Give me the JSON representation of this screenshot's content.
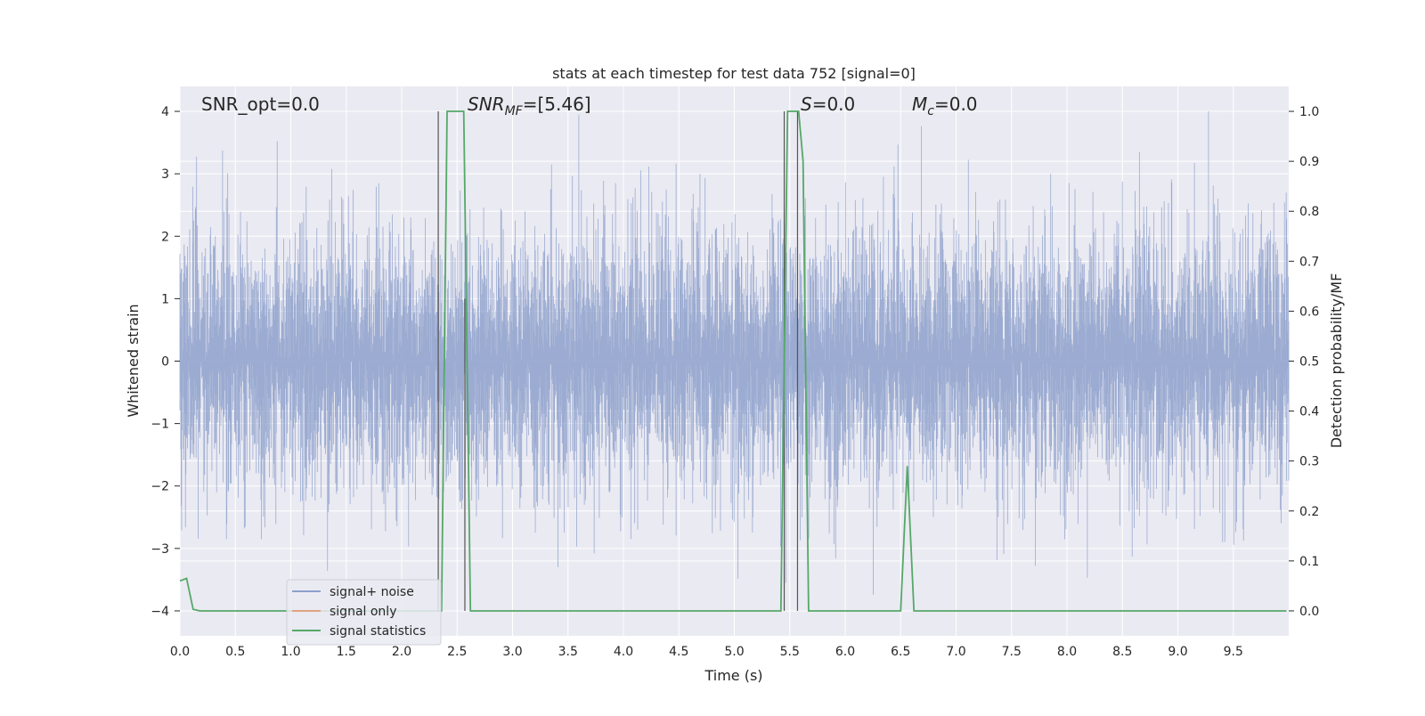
{
  "chart_data": {
    "type": "line",
    "title": "stats at each timestep for test data 752 [signal=0]",
    "xlabel": "Time (s)",
    "ylabel_left": "Whitened strain",
    "ylabel_right": "Detection probability/MF",
    "xlim": [
      0.0,
      10.0
    ],
    "ylim_left": [
      -4.4,
      4.4
    ],
    "ylim_right": [
      -0.05,
      1.05
    ],
    "x_ticks": [
      0.0,
      0.5,
      1.0,
      1.5,
      2.0,
      2.5,
      3.0,
      3.5,
      4.0,
      4.5,
      5.0,
      5.5,
      6.0,
      6.5,
      7.0,
      7.5,
      8.0,
      8.5,
      9.0,
      9.5
    ],
    "x_tick_labels": [
      "0.0",
      "0.5",
      "1.0",
      "1.5",
      "2.0",
      "2.5",
      "3.0",
      "3.5",
      "4.0",
      "4.5",
      "5.0",
      "5.5",
      "6.0",
      "6.5",
      "7.0",
      "7.5",
      "8.0",
      "8.5",
      "9.0",
      "9.5"
    ],
    "y_left_ticks": [
      -4,
      -3,
      -2,
      -1,
      0,
      1,
      2,
      3,
      4
    ],
    "y_left_tick_labels": [
      "−4",
      "−3",
      "−2",
      "−1",
      "0",
      "1",
      "2",
      "3",
      "4"
    ],
    "y_right_ticks": [
      0.0,
      0.1,
      0.2,
      0.3,
      0.4,
      0.5,
      0.6,
      0.7,
      0.8,
      0.9,
      1.0
    ],
    "y_right_tick_labels": [
      "0.0",
      "0.1",
      "0.2",
      "0.3",
      "0.4",
      "0.5",
      "0.6",
      "0.7",
      "0.8",
      "0.9",
      "1.0"
    ],
    "grid": true,
    "legend_placement": "lower-left",
    "annotations": {
      "snr_opt": "SNR_opt=0.0",
      "snr_mf_main": "SNR",
      "snr_mf_sub": "MF",
      "snr_mf_value": "=[5.46]",
      "s_main": "S",
      "s_value": "=0.0",
      "mc_main": "M",
      "mc_sub": "c",
      "mc_value": "=0.0"
    },
    "series": [
      {
        "name": "signal+ noise",
        "axis": "left",
        "color": "#8da0cb",
        "description": "whitened strain noise, 10 s sampled, amplitude roughly within ±4",
        "x_range": [
          0.0,
          10.0
        ],
        "y_range": [
          -4.0,
          4.0
        ]
      },
      {
        "name": "signal only",
        "axis": "left",
        "color": "#e1a382",
        "x": [],
        "y": []
      },
      {
        "name": "signal statistics",
        "axis": "right",
        "color": "#55a868",
        "x": [
          0.0,
          0.06,
          0.12,
          0.18,
          2.3,
          2.36,
          2.41,
          2.5,
          2.56,
          2.62,
          5.42,
          5.48,
          5.54,
          5.58,
          5.62,
          5.67,
          6.5,
          6.56,
          6.62,
          9.98
        ],
        "y": [
          0.06,
          0.065,
          0.003,
          0.0,
          0.0,
          0.0,
          1.0,
          1.0,
          1.0,
          0.0,
          0.0,
          1.0,
          1.0,
          1.0,
          0.9,
          0.0,
          0.0,
          0.29,
          0.0,
          0.0
        ]
      }
    ],
    "vertical_markers": [
      {
        "x": 2.33,
        "y_top": 4.0,
        "y_bottom": -4.0,
        "color": "#555555"
      },
      {
        "x": 2.57,
        "y_top": 1.0,
        "y_bottom": -4.0,
        "color": "#555555"
      },
      {
        "x": 5.45,
        "y_top": 4.0,
        "y_bottom": -4.0,
        "color": "#555555"
      },
      {
        "x": 5.57,
        "y_top": 4.0,
        "y_bottom": -4.0,
        "color": "#555555"
      }
    ],
    "colors": {
      "axes_background": "#eaeaf2",
      "grid": "#ffffff",
      "noise": "#8da0cb",
      "signal_only": "#e1a382",
      "statistics": "#55a868"
    }
  }
}
